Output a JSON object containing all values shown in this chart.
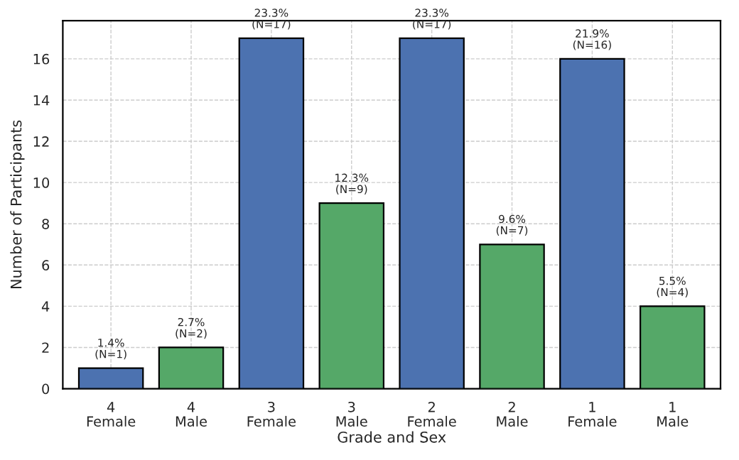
{
  "chart_data": {
    "type": "bar",
    "categories": [
      "4\nFemale",
      "4\nMale",
      "3\nFemale",
      "3\nMale",
      "2\nFemale",
      "2\nMale",
      "1\nFemale",
      "1\nMale"
    ],
    "values": [
      1,
      2,
      17,
      9,
      17,
      7,
      16,
      4
    ],
    "colors": [
      "#4c72b0",
      "#55a868",
      "#4c72b0",
      "#55a868",
      "#4c72b0",
      "#55a868",
      "#4c72b0",
      "#55a868"
    ],
    "value_labels": [
      "1.4%\n(N=1)",
      "2.7%\n(N=2)",
      "23.3%\n(N=17)",
      "12.3%\n(N=9)",
      "23.3%\n(N=17)",
      "9.6%\n(N=7)",
      "21.9%\n(N=16)",
      "5.5%\n(N=4)"
    ],
    "xlabel": "Grade and Sex",
    "ylabel": "Number of Participants",
    "ylim": [
      0,
      17.85
    ],
    "yticks": [
      0,
      2,
      4,
      6,
      8,
      10,
      12,
      14,
      16
    ],
    "grid": true
  }
}
